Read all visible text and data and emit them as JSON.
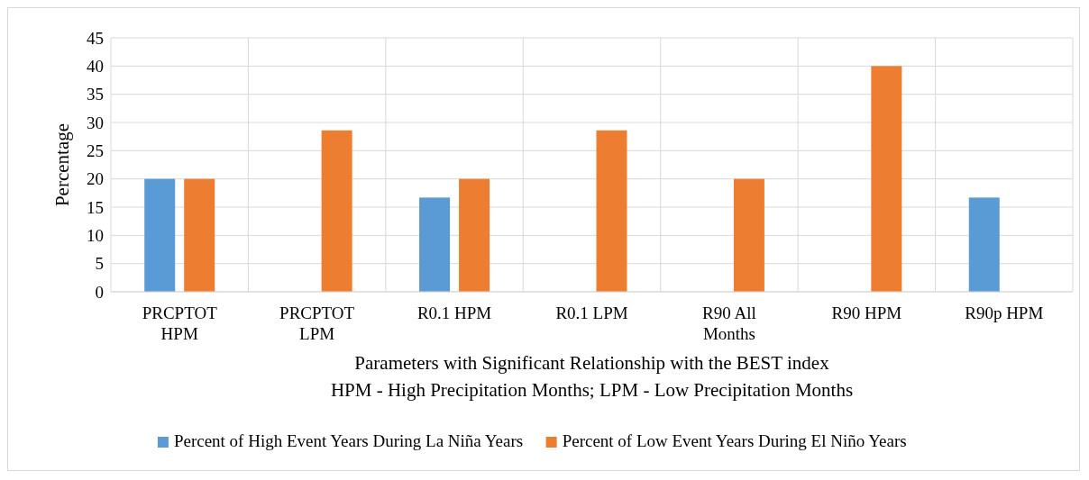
{
  "chart_data": {
    "type": "bar",
    "categories": [
      "PRCPTOT HPM",
      "PRCPTOT LPM",
      "R0.1 HPM",
      "R0.1 LPM",
      "R90 All Months",
      "R90 HPM",
      "R90p HPM"
    ],
    "series": [
      {
        "name": "Percent of High Event Years During La Niña Years",
        "color": "#5b9bd5",
        "values": [
          20,
          0,
          16.7,
          0,
          0,
          0,
          16.7
        ]
      },
      {
        "name": "Percent of Low Event Years During El Niño Years",
        "color": "#ed7d31",
        "values": [
          20,
          28.6,
          20,
          28.6,
          20,
          40,
          0
        ]
      }
    ],
    "xlabel": "Parameters with Significant Relationship with the BEST index",
    "ylabel": "Percentage",
    "annotations": [
      "HPM - High Precipitation Months; LPM - Low Precipitation Months"
    ],
    "ylim": [
      0,
      45
    ],
    "yticks": [
      0,
      5,
      10,
      15,
      20,
      25,
      30,
      35,
      40,
      45
    ],
    "grid": "y",
    "legend": "bottom"
  }
}
